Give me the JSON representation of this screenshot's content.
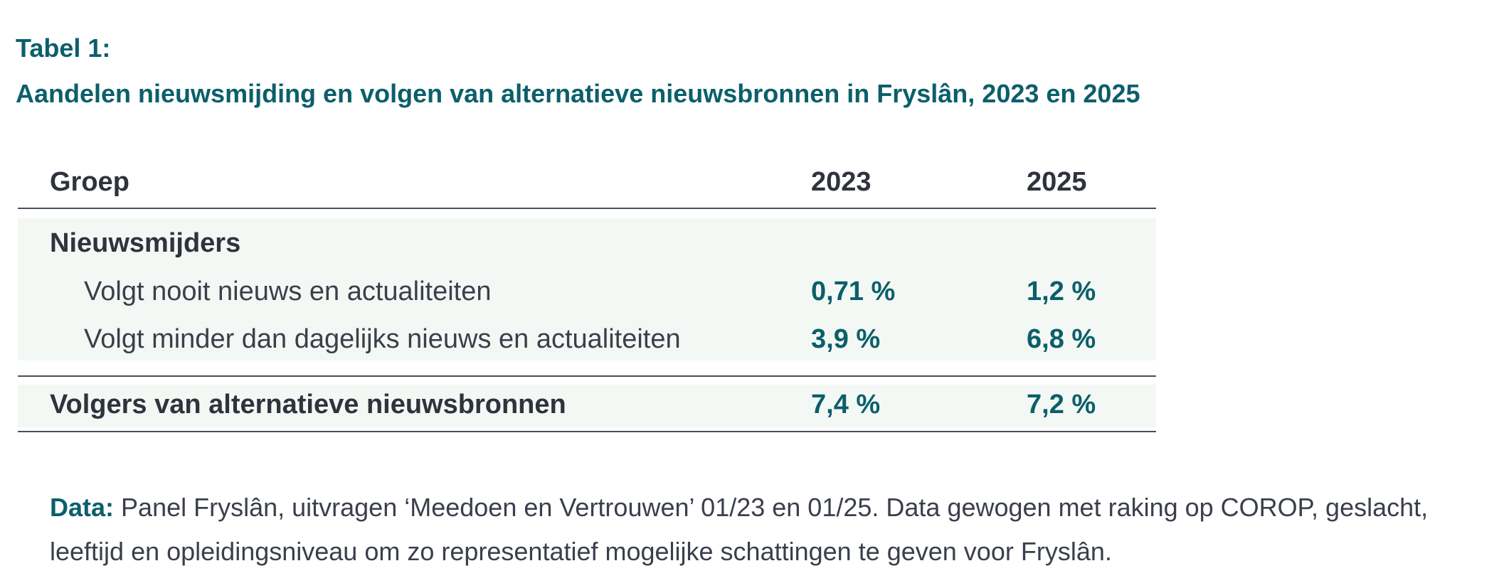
{
  "caption": {
    "label": "Tabel 1:",
    "title": "Aandelen nieuwsmijding en volgen van alternatieve nieuwsbronnen in Fryslân, 2023 en 2025"
  },
  "table": {
    "headers": [
      "Groep",
      "2023",
      "2025"
    ],
    "group_label": "Nieuwsmijders",
    "rows": [
      {
        "label": "Volgt nooit nieuws en actualiteiten",
        "v2023": "0,71 %",
        "v2025": "1,2 %"
      },
      {
        "label": "Volgt minder dan dagelijks nieuws en actualiteiten",
        "v2023": "3,9 %",
        "v2025": "6,8 %"
      }
    ],
    "summary_row": {
      "label": "Volgers van alternatieve nieuwsbronnen",
      "v2023": "7,4 %",
      "v2025": "7,2 %"
    }
  },
  "note": {
    "lead": "Data:",
    "text": " Panel Fryslân, uitvragen ‘Meedoen en Vertrouwen’ 01/23 en 01/25. Data gewogen met raking op COROP, geslacht, leeftijd en opleidingsniveau om zo representatief mogelijke schattingen te geven voor Fryslân."
  },
  "colors": {
    "accent": "#0b5f6b",
    "text": "#3a3f4b",
    "band": "#f4f8f4",
    "rule": "#4a4f5a"
  }
}
